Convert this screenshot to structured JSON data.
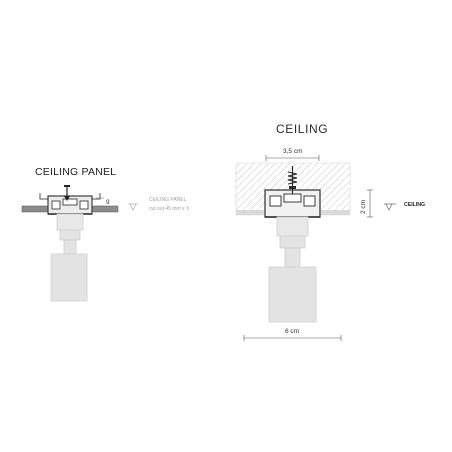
{
  "left": {
    "title": "CEILING PANEL",
    "dim_thickness": "9",
    "icon": "ceiling-panel-icon",
    "note_line1": "CEILING PANEL",
    "note_line2": "cut out 45 mm x X"
  },
  "right": {
    "title": "CEILING",
    "dim_width_top": "3,5 cm",
    "dim_height": "2 cm",
    "dim_width_bottom": "6 cm",
    "icon": "ceiling-icon",
    "note": "CEILING"
  },
  "colors": {
    "profile": "#4a4a4a",
    "panel": "#8c8c8c",
    "ceiling_hatch": "#bdbdbd",
    "spot_body": "#e3e3e3",
    "spot_outline": "#d0d0d0"
  }
}
